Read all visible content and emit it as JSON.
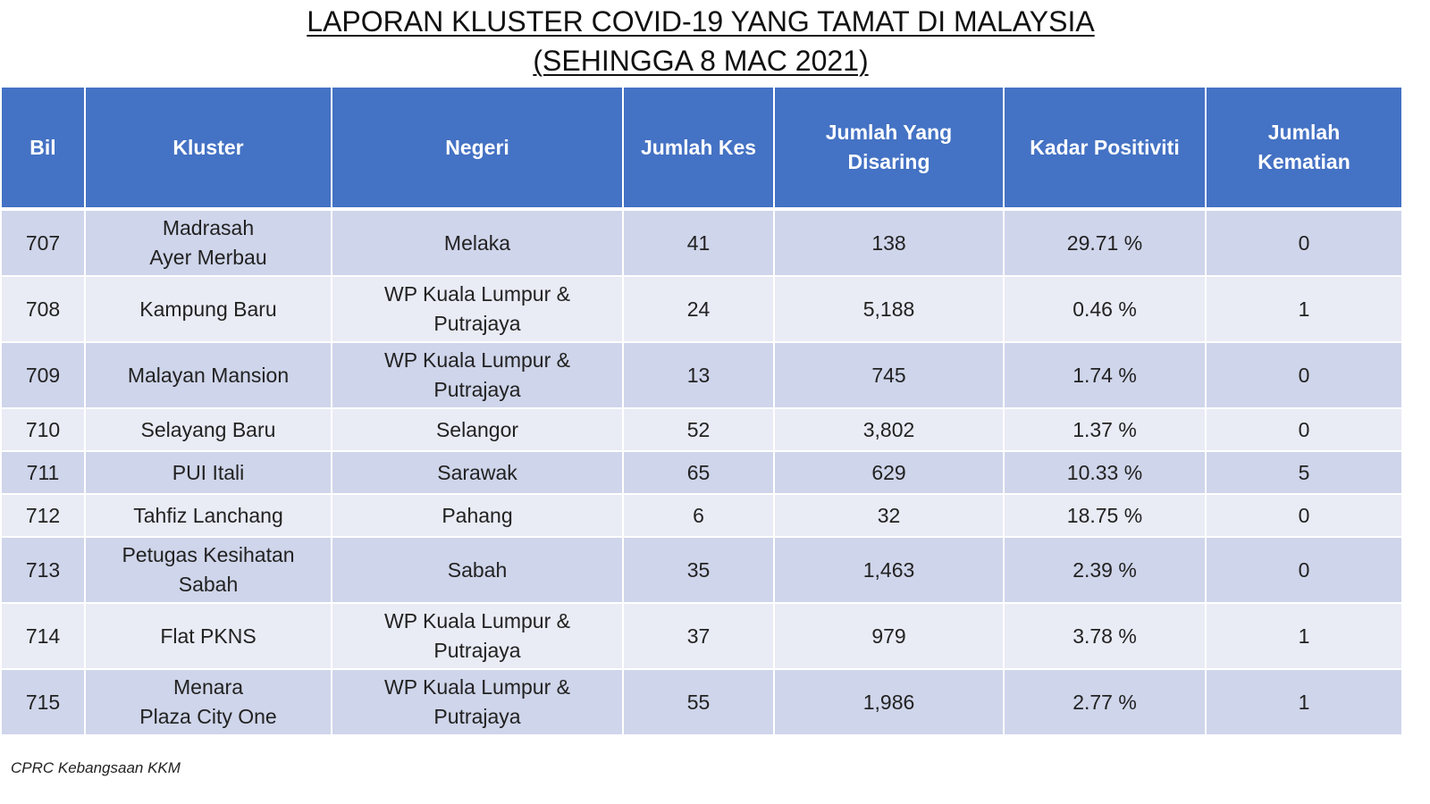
{
  "title": {
    "line1": "LAPORAN KLUSTER COVID-19 YANG TAMAT DI MALAYSIA",
    "line2": "(SEHINGGA 8 MAC 2021)"
  },
  "table": {
    "headers": {
      "bil": "Bil",
      "kluster": "Kluster",
      "negeri": "Negeri",
      "jumlah_kes": "Jumlah Kes",
      "jumlah_disaring_1": "Jumlah Yang",
      "jumlah_disaring_2": "Disaring",
      "kadar_positiviti": "Kadar Positiviti",
      "jumlah_kematian_1": "Jumlah",
      "jumlah_kematian_2": "Kematian"
    },
    "rows": [
      {
        "bil": "707",
        "kluster_1": "Madrasah",
        "kluster_2": "Ayer Merbau",
        "negeri_1": "Melaka",
        "negeri_2": "",
        "kes": "41",
        "disaring": "138",
        "positiviti": "29.71 %",
        "kematian": "0"
      },
      {
        "bil": "708",
        "kluster_1": "Kampung Baru",
        "kluster_2": "",
        "negeri_1": "WP Kuala Lumpur &",
        "negeri_2": "Putrajaya",
        "kes": "24",
        "disaring": "5,188",
        "positiviti": "0.46 %",
        "kematian": "1"
      },
      {
        "bil": "709",
        "kluster_1": "Malayan Mansion",
        "kluster_2": "",
        "negeri_1": "WP Kuala Lumpur &",
        "negeri_2": "Putrajaya",
        "kes": "13",
        "disaring": "745",
        "positiviti": "1.74 %",
        "kematian": "0"
      },
      {
        "bil": "710",
        "kluster_1": "Selayang Baru",
        "kluster_2": "",
        "negeri_1": "Selangor",
        "negeri_2": "",
        "kes": "52",
        "disaring": "3,802",
        "positiviti": "1.37 %",
        "kematian": "0"
      },
      {
        "bil": "711",
        "kluster_1": "PUI Itali",
        "kluster_2": "",
        "negeri_1": "Sarawak",
        "negeri_2": "",
        "kes": "65",
        "disaring": "629",
        "positiviti": "10.33 %",
        "kematian": "5"
      },
      {
        "bil": "712",
        "kluster_1": "Tahfiz Lanchang",
        "kluster_2": "",
        "negeri_1": "Pahang",
        "negeri_2": "",
        "kes": "6",
        "disaring": "32",
        "positiviti": "18.75 %",
        "kematian": "0"
      },
      {
        "bil": "713",
        "kluster_1": "Petugas Kesihatan",
        "kluster_2": "Sabah",
        "negeri_1": "Sabah",
        "negeri_2": "",
        "kes": "35",
        "disaring": "1,463",
        "positiviti": "2.39 %",
        "kematian": "0"
      },
      {
        "bil": "714",
        "kluster_1": "Flat PKNS",
        "kluster_2": "",
        "negeri_1": "WP Kuala Lumpur &",
        "negeri_2": "Putrajaya",
        "kes": "37",
        "disaring": "979",
        "positiviti": "3.78 %",
        "kematian": "1"
      },
      {
        "bil": "715",
        "kluster_1": "Menara",
        "kluster_2": "Plaza City One",
        "negeri_1": "WP Kuala Lumpur &",
        "negeri_2": "Putrajaya",
        "kes": "55",
        "disaring": "1,986",
        "positiviti": "2.77 %",
        "kematian": "1"
      }
    ]
  },
  "footer": "CPRC Kebangsaan KKM",
  "colors": {
    "header_bg": "#4472c4",
    "row_odd_bg": "#cfd5ea",
    "row_even_bg": "#e9ebf5"
  }
}
